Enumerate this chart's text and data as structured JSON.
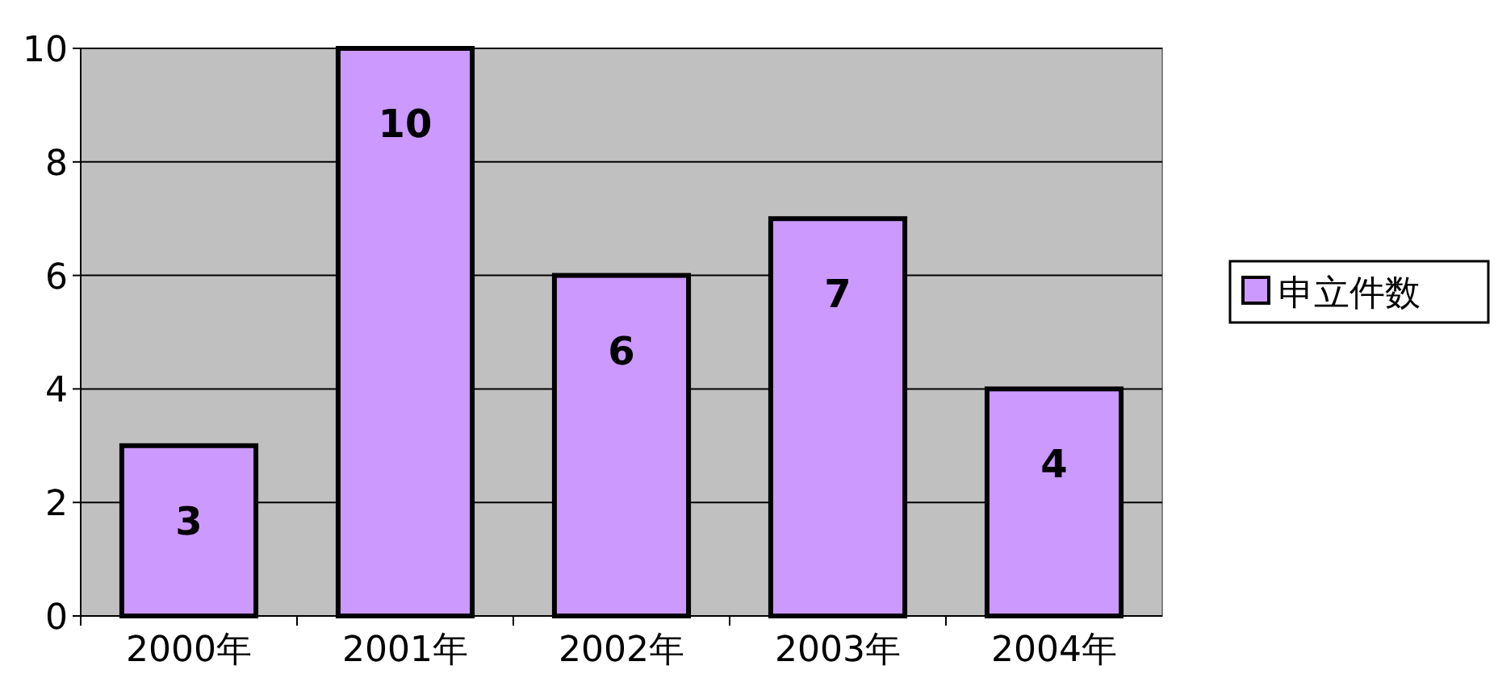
{
  "chart_data": {
    "type": "bar",
    "categories": [
      "2000年",
      "2001年",
      "2002年",
      "2003年",
      "2004年"
    ],
    "series": [
      {
        "name": "申立件数",
        "color": "#cc99ff",
        "values": [
          3,
          10,
          6,
          7,
          4
        ]
      }
    ],
    "ylim": [
      0,
      10
    ],
    "yticks": [
      0,
      2,
      4,
      6,
      8,
      10
    ],
    "grid": "y",
    "legend": "right",
    "data_labels": true
  }
}
